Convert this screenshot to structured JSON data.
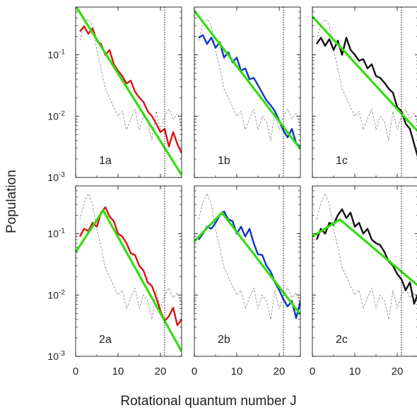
{
  "ylabel": "Population",
  "xlabel": "Rotational quantum number J",
  "x_tick_labels": [
    "0",
    "10",
    "20"
  ],
  "y_tick_labels": [
    {
      "base": "10",
      "exp": "-1"
    },
    {
      "base": "10",
      "exp": "-2"
    },
    {
      "base": "10",
      "exp": "-3"
    }
  ],
  "colors": {
    "fit": "#33dd11",
    "reference": "#9a9a9a",
    "marker": "#000000",
    "panel_a": "#dd1111",
    "panel_b": "#1133cc",
    "panel_c": "#111111"
  },
  "chart_data": [
    {
      "type": "line",
      "panel": "1a",
      "xlim": [
        0,
        25
      ],
      "ylim": [
        0.001,
        0.6
      ],
      "yscale": "log",
      "vertical_marker_x": 21,
      "series": [
        {
          "role": "data",
          "color": "#dd1111",
          "x": [
            1,
            2,
            3,
            4,
            5,
            6,
            7,
            8,
            9,
            10,
            11,
            12,
            13,
            14,
            15,
            16,
            17,
            18,
            19,
            20,
            21,
            22,
            23,
            24,
            25
          ],
          "values": [
            0.24,
            0.29,
            0.22,
            0.27,
            0.17,
            0.15,
            0.1,
            0.12,
            0.07,
            0.055,
            0.045,
            0.034,
            0.038,
            0.025,
            0.02,
            0.017,
            0.012,
            0.01,
            0.0075,
            0.0055,
            0.0062,
            0.0032,
            0.0055,
            0.0035,
            0.0025
          ]
        },
        {
          "role": "fit",
          "color": "#33dd11",
          "x": [
            0,
            25
          ],
          "values": [
            0.63,
            0.0011
          ]
        },
        {
          "role": "reference",
          "color": "#9a9a9a",
          "x": [
            1,
            2,
            3,
            4,
            5,
            6,
            7,
            8,
            9,
            10,
            11,
            12,
            13,
            14,
            15,
            16,
            17,
            18,
            19,
            20,
            21,
            22,
            23,
            24,
            25
          ],
          "values": [
            0.17,
            0.32,
            0.38,
            0.3,
            0.12,
            0.06,
            0.028,
            0.02,
            0.014,
            0.01,
            0.012,
            0.006,
            0.009,
            0.013,
            0.006,
            0.01,
            0.008,
            0.004,
            0.012,
            0.006,
            0.01,
            0.013,
            0.009,
            0.011,
            0.007
          ]
        }
      ]
    },
    {
      "type": "line",
      "panel": "1b",
      "xlim": [
        0,
        25
      ],
      "ylim": [
        0.001,
        0.6
      ],
      "yscale": "log",
      "vertical_marker_x": 21,
      "series": [
        {
          "role": "data",
          "color": "#1133cc",
          "x": [
            1,
            2,
            3,
            4,
            5,
            6,
            7,
            8,
            9,
            10,
            11,
            12,
            13,
            14,
            15,
            16,
            17,
            18,
            19,
            20,
            21,
            22,
            23,
            24,
            25
          ],
          "values": [
            0.19,
            0.21,
            0.15,
            0.19,
            0.13,
            0.16,
            0.09,
            0.11,
            0.075,
            0.09,
            0.055,
            0.06,
            0.04,
            0.042,
            0.032,
            0.024,
            0.018,
            0.015,
            0.012,
            0.0085,
            0.0058,
            0.0045,
            0.0062,
            0.0036,
            0.0032
          ]
        },
        {
          "role": "fit",
          "color": "#33dd11",
          "x": [
            0,
            25
          ],
          "values": [
            0.52,
            0.0029
          ]
        },
        {
          "role": "reference",
          "color": "#9a9a9a",
          "x": [
            1,
            2,
            3,
            4,
            5,
            6,
            7,
            8,
            9,
            10,
            11,
            12,
            13,
            14,
            15,
            16,
            17,
            18,
            19,
            20,
            21,
            22,
            23,
            24,
            25
          ],
          "values": [
            0.17,
            0.32,
            0.38,
            0.3,
            0.12,
            0.06,
            0.028,
            0.02,
            0.014,
            0.01,
            0.012,
            0.006,
            0.009,
            0.013,
            0.006,
            0.01,
            0.008,
            0.004,
            0.012,
            0.006,
            0.01,
            0.013,
            0.009,
            0.011,
            0.007
          ]
        }
      ]
    },
    {
      "type": "line",
      "panel": "1c",
      "xlim": [
        0,
        25
      ],
      "ylim": [
        0.001,
        0.6
      ],
      "yscale": "log",
      "vertical_marker_x": 21,
      "series": [
        {
          "role": "data",
          "color": "#111111",
          "x": [
            1,
            2,
            3,
            4,
            5,
            6,
            7,
            8,
            9,
            10,
            11,
            12,
            13,
            14,
            15,
            16,
            17,
            18,
            19,
            20,
            21,
            22,
            23,
            24,
            25
          ],
          "values": [
            0.15,
            0.19,
            0.14,
            0.18,
            0.12,
            0.17,
            0.1,
            0.19,
            0.12,
            0.1,
            0.08,
            0.085,
            0.06,
            0.07,
            0.045,
            0.042,
            0.035,
            0.028,
            0.024,
            0.014,
            0.012,
            0.0075,
            0.0062,
            0.0035,
            0.002
          ]
        },
        {
          "role": "fit",
          "color": "#33dd11",
          "x": [
            0,
            25
          ],
          "values": [
            0.42,
            0.0055
          ]
        },
        {
          "role": "reference",
          "color": "#9a9a9a",
          "x": [
            1,
            2,
            3,
            4,
            5,
            6,
            7,
            8,
            9,
            10,
            11,
            12,
            13,
            14,
            15,
            16,
            17,
            18,
            19,
            20,
            21,
            22,
            23,
            24,
            25
          ],
          "values": [
            0.17,
            0.32,
            0.38,
            0.3,
            0.12,
            0.06,
            0.028,
            0.02,
            0.014,
            0.01,
            0.012,
            0.006,
            0.009,
            0.013,
            0.006,
            0.01,
            0.008,
            0.004,
            0.012,
            0.006,
            0.01,
            0.013,
            0.009,
            0.011,
            0.007
          ]
        }
      ]
    },
    {
      "type": "line",
      "panel": "2a",
      "xlim": [
        0,
        25
      ],
      "ylim": [
        0.001,
        0.6
      ],
      "yscale": "log",
      "vertical_marker_x": 21,
      "series": [
        {
          "role": "data",
          "color": "#dd1111",
          "x": [
            1,
            2,
            3,
            4,
            5,
            6,
            7,
            8,
            9,
            10,
            11,
            12,
            13,
            14,
            15,
            16,
            17,
            18,
            19,
            20,
            21,
            22,
            23,
            24,
            25
          ],
          "values": [
            0.09,
            0.12,
            0.11,
            0.15,
            0.13,
            0.22,
            0.27,
            0.19,
            0.16,
            0.1,
            0.09,
            0.07,
            0.048,
            0.045,
            0.03,
            0.025,
            0.016,
            0.014,
            0.009,
            0.0055,
            0.0038,
            0.0045,
            0.0062,
            0.0032,
            0.004
          ]
        },
        {
          "role": "fit",
          "color": "#33dd11",
          "x": [
            0,
            6.5,
            25
          ],
          "values": [
            0.05,
            0.24,
            0.0012
          ]
        },
        {
          "role": "reference",
          "color": "#9a9a9a",
          "x": [
            1,
            2,
            3,
            4,
            5,
            6,
            7,
            8,
            9,
            10,
            11,
            12,
            13,
            14,
            15,
            16,
            17,
            18,
            19,
            20,
            21,
            22,
            23,
            24,
            25
          ],
          "values": [
            0.17,
            0.32,
            0.45,
            0.3,
            0.12,
            0.06,
            0.028,
            0.02,
            0.014,
            0.01,
            0.012,
            0.006,
            0.009,
            0.013,
            0.006,
            0.01,
            0.008,
            0.004,
            0.012,
            0.006,
            0.01,
            0.013,
            0.009,
            0.011,
            0.007
          ]
        }
      ]
    },
    {
      "type": "line",
      "panel": "2b",
      "xlim": [
        0,
        25
      ],
      "ylim": [
        0.001,
        0.6
      ],
      "yscale": "log",
      "vertical_marker_x": 21,
      "series": [
        {
          "role": "data",
          "color": "#1133cc",
          "x": [
            1,
            2,
            3,
            4,
            5,
            6,
            7,
            8,
            9,
            10,
            11,
            12,
            13,
            14,
            15,
            16,
            17,
            18,
            19,
            20,
            21,
            22,
            23,
            24,
            25
          ],
          "values": [
            0.08,
            0.1,
            0.13,
            0.12,
            0.15,
            0.2,
            0.23,
            0.17,
            0.16,
            0.1,
            0.13,
            0.09,
            0.12,
            0.07,
            0.046,
            0.045,
            0.03,
            0.024,
            0.016,
            0.012,
            0.0085,
            0.0065,
            0.008,
            0.0042,
            0.0078
          ]
        },
        {
          "role": "fit",
          "color": "#33dd11",
          "x": [
            0,
            6.5,
            25
          ],
          "values": [
            0.075,
            0.22,
            0.0048
          ]
        },
        {
          "role": "reference",
          "color": "#9a9a9a",
          "x": [
            1,
            2,
            3,
            4,
            5,
            6,
            7,
            8,
            9,
            10,
            11,
            12,
            13,
            14,
            15,
            16,
            17,
            18,
            19,
            20,
            21,
            22,
            23,
            24,
            25
          ],
          "values": [
            0.17,
            0.32,
            0.45,
            0.3,
            0.12,
            0.06,
            0.028,
            0.02,
            0.014,
            0.01,
            0.012,
            0.006,
            0.009,
            0.013,
            0.006,
            0.01,
            0.008,
            0.004,
            0.012,
            0.006,
            0.01,
            0.013,
            0.009,
            0.011,
            0.007
          ]
        }
      ]
    },
    {
      "type": "line",
      "panel": "2c",
      "xlim": [
        0,
        25
      ],
      "ylim": [
        0.001,
        0.6
      ],
      "yscale": "log",
      "vertical_marker_x": 21,
      "series": [
        {
          "role": "data",
          "color": "#111111",
          "x": [
            1,
            2,
            3,
            4,
            5,
            6,
            7,
            8,
            9,
            10,
            11,
            12,
            13,
            14,
            15,
            16,
            17,
            18,
            19,
            20,
            21,
            22,
            23,
            24,
            25
          ],
          "values": [
            0.08,
            0.12,
            0.1,
            0.15,
            0.14,
            0.2,
            0.25,
            0.18,
            0.22,
            0.13,
            0.15,
            0.1,
            0.12,
            0.08,
            0.07,
            0.065,
            0.05,
            0.035,
            0.03,
            0.022,
            0.018,
            0.012,
            0.016,
            0.0072,
            0.011
          ]
        },
        {
          "role": "fit",
          "color": "#33dd11",
          "x": [
            0,
            6.5,
            25
          ],
          "values": [
            0.09,
            0.17,
            0.014
          ]
        },
        {
          "role": "reference",
          "color": "#9a9a9a",
          "x": [
            1,
            2,
            3,
            4,
            5,
            6,
            7,
            8,
            9,
            10,
            11,
            12,
            13,
            14,
            15,
            16,
            17,
            18,
            19,
            20,
            21,
            22,
            23,
            24,
            25
          ],
          "values": [
            0.17,
            0.32,
            0.45,
            0.3,
            0.12,
            0.06,
            0.028,
            0.02,
            0.014,
            0.01,
            0.012,
            0.006,
            0.009,
            0.013,
            0.006,
            0.01,
            0.008,
            0.004,
            0.012,
            0.006,
            0.01,
            0.013,
            0.009,
            0.011,
            0.007
          ]
        }
      ]
    }
  ]
}
